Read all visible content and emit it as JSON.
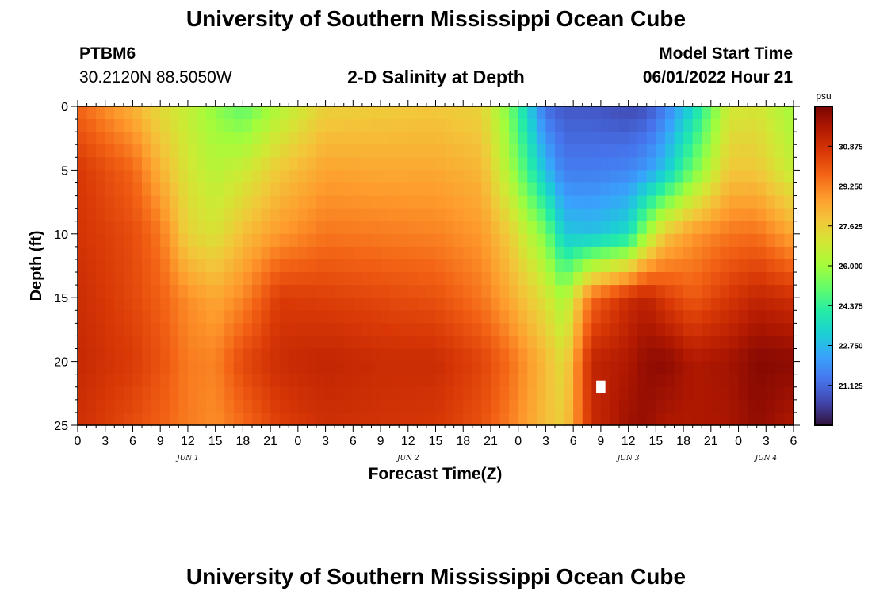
{
  "header": {
    "title": "University of Southern Mississippi Ocean Cube",
    "station_id": "PTBM6",
    "coordinates": "30.2120N  88.5050W",
    "subtitle": "2-D Salinity at Depth",
    "model_start_label": "Model Start Time",
    "model_start_value": "06/01/2022 Hour 21"
  },
  "footer": {
    "title": "University of Southern Mississippi Ocean Cube"
  },
  "chart_data": {
    "type": "heatmap",
    "title": "2-D Salinity at Depth",
    "xlabel": "Forecast Time(Z)",
    "ylabel": "Depth (ft)",
    "x_tick_labels": [
      "0",
      "3",
      "6",
      "9",
      "12",
      "15",
      "18",
      "21",
      "0",
      "3",
      "6",
      "9",
      "12",
      "15",
      "18",
      "21",
      "0",
      "3",
      "6",
      "9",
      "12",
      "15",
      "18",
      "21",
      "0",
      "3",
      "6"
    ],
    "x_hours_range": [
      0,
      78
    ],
    "date_labels": [
      {
        "label": "JUN 1",
        "hour": 12
      },
      {
        "label": "JUN 2",
        "hour": 36
      },
      {
        "label": "JUN 3",
        "hour": 60
      },
      {
        "label": "JUN 4",
        "hour": 75
      }
    ],
    "y_ticks": [
      0,
      5,
      10,
      15,
      20,
      25
    ],
    "ylim": [
      0,
      25
    ],
    "y_inverted": true,
    "colorbar": {
      "unit": "psu",
      "range": [
        19.5,
        32.5
      ],
      "ticks": [
        "30.875",
        "29.250",
        "27.625",
        "26.000",
        "24.375",
        "22.750",
        "21.125"
      ],
      "tick_values": [
        30.875,
        29.25,
        27.625,
        26.0,
        24.375,
        22.75,
        21.125
      ],
      "colormap": [
        "#30123b",
        "#4145ab",
        "#4675ed",
        "#39a2fc",
        "#1bcfd4",
        "#24eca6",
        "#61fc6c",
        "#a4fc3b",
        "#d1e834",
        "#f3c63a",
        "#fe9b2d",
        "#f36315",
        "#d93806",
        "#b11901",
        "#7a0403"
      ]
    },
    "x_time_nodes": [
      0,
      6,
      9,
      12,
      15,
      18,
      22,
      27,
      33,
      39,
      44,
      47,
      51,
      53,
      56,
      60,
      62,
      64,
      67,
      71,
      74,
      78
    ],
    "depth_nodes": [
      0,
      5,
      10,
      15,
      20,
      25
    ],
    "salinity_psu": [
      [
        29.7,
        28.3,
        27.3,
        26.6,
        25.7,
        25.0,
        26.3,
        27.6,
        27.7,
        27.8,
        27.5,
        25.4,
        21.2,
        20.8,
        20.8,
        20.5,
        20.7,
        21.5,
        23.4,
        26.9,
        27.0,
        26.0
      ],
      [
        30.7,
        29.7,
        28.3,
        27.0,
        26.4,
        26.8,
        27.8,
        28.6,
        28.5,
        28.5,
        28.2,
        26.2,
        22.8,
        21.5,
        21.5,
        21.7,
        22.1,
        23.0,
        25.2,
        27.8,
        27.8,
        26.6
      ],
      [
        30.8,
        30.2,
        29.4,
        27.5,
        27.1,
        28.0,
        28.8,
        29.4,
        29.3,
        29.2,
        28.8,
        27.7,
        25.4,
        23.1,
        22.9,
        23.6,
        26.0,
        27.8,
        28.8,
        29.4,
        29.5,
        28.5
      ],
      [
        31.0,
        30.3,
        29.8,
        29.0,
        28.5,
        29.1,
        30.6,
        30.5,
        30.3,
        30.1,
        29.4,
        28.5,
        27.1,
        26.0,
        29.6,
        31.0,
        31.3,
        30.6,
        29.9,
        30.7,
        31.2,
        30.9
      ],
      [
        31.1,
        30.6,
        30.1,
        29.3,
        29.2,
        30.3,
        31.0,
        31.2,
        31.0,
        31.0,
        30.4,
        29.6,
        28.1,
        27.2,
        31.2,
        31.6,
        32.1,
        32.2,
        31.6,
        31.8,
        32.3,
        32.2
      ],
      [
        30.9,
        30.2,
        29.8,
        29.3,
        29.0,
        29.6,
        30.5,
        30.9,
        30.8,
        30.7,
        30.1,
        29.3,
        28.0,
        27.6,
        31.0,
        31.9,
        32.0,
        31.6,
        31.6,
        31.7,
        32.1,
        31.6
      ]
    ],
    "missing_cells": [
      {
        "hour": 57,
        "depth": 22
      }
    ]
  }
}
